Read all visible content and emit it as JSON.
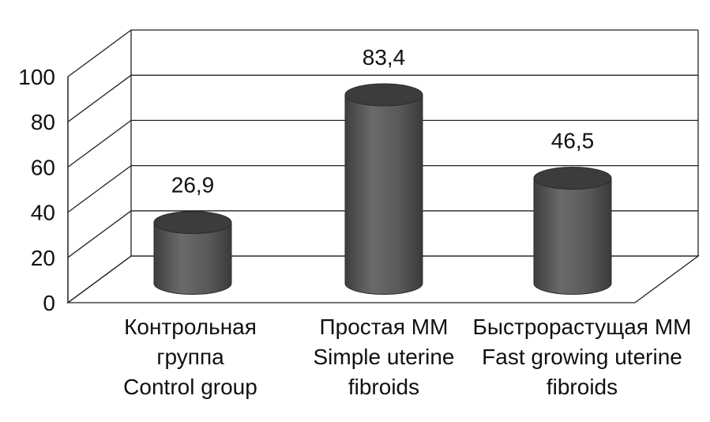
{
  "chart_data": {
    "type": "bar",
    "style": "3d-cylinder",
    "categories": [
      [
        "Контрольная",
        "группа",
        "Control group"
      ],
      [
        "Простая ММ",
        "Simple uterine",
        "fibroids"
      ],
      [
        "Быстрорастущая ММ",
        "Fast growing uterine",
        "fibroids"
      ]
    ],
    "values": [
      26.9,
      83.4,
      46.5
    ],
    "data_labels": [
      "26,9",
      "83,4",
      "46,5"
    ],
    "yticks": [
      "0",
      "20",
      "40",
      "60",
      "80",
      "100"
    ],
    "ylim": [
      0,
      100
    ],
    "grid": true,
    "title": "",
    "xlabel": "",
    "ylabel": "",
    "colors": {
      "bar": "#5a5a5a",
      "bar_top": "#3c3c3c",
      "grid": "#222222"
    }
  }
}
